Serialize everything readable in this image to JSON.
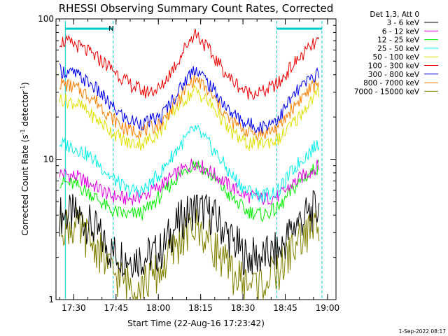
{
  "chart_data": {
    "type": "line",
    "title": "RHESSI Observing Summary Count Rates, Corrected",
    "xlabel": "Start Time (22-Aug-16 17:23:42)",
    "ylabel": "Corrected Count Rate (s",
    "ylabel_sup": "-1",
    "ylabel_mid": " detector",
    "ylabel_sup2": "-1",
    "ylabel_end": ")",
    "y_scale": "log",
    "ylim": [
      1,
      100
    ],
    "xlim": [
      "17:23:42",
      "19:03:00"
    ],
    "x_tick_labels": [
      "17:30",
      "17:45",
      "18:00",
      "18:15",
      "18:30",
      "18:45",
      "19:00"
    ],
    "y_tick_labels": [
      "1",
      "10",
      "100"
    ],
    "grid": false,
    "legend_header": "Det 1,3, Att 0",
    "legend_position": "right",
    "night_marker_label": "N",
    "series": [
      {
        "name": "3 - 6 keV",
        "color": "#000000",
        "values": [
          4,
          4,
          3.2,
          2.2,
          2,
          2,
          2.2,
          3.5,
          4.5,
          4,
          2.8,
          2,
          2,
          2.2,
          3.5,
          4.5
        ]
      },
      {
        "name": "6 - 12 keV",
        "color": "#e000e0",
        "values": [
          8,
          7.5,
          6.5,
          5.5,
          5.2,
          5.5,
          6.5,
          8,
          9.5,
          8,
          6.5,
          5.5,
          5.2,
          5.5,
          7,
          9
        ]
      },
      {
        "name": "12 - 25 keV",
        "color": "#00ee00",
        "values": [
          7,
          6.5,
          5.5,
          4.3,
          4,
          4.2,
          5.5,
          7.5,
          9.5,
          7.5,
          5.5,
          4.3,
          4,
          4.5,
          6.5,
          9
        ]
      },
      {
        "name": "25 - 50 keV",
        "color": "#00eeee",
        "values": [
          13,
          12,
          10,
          7.5,
          6,
          6,
          8,
          12,
          16.5,
          12,
          8,
          6,
          5.5,
          6,
          9,
          13
        ]
      },
      {
        "name": "50 - 100 keV",
        "color": "#e0e000",
        "values": [
          27,
          25,
          20,
          16,
          13,
          13,
          16,
          24,
          31,
          24,
          16,
          13,
          13,
          14,
          19,
          30
        ]
      },
      {
        "name": "100 - 300 keV",
        "color": "#ee0000",
        "values": [
          70,
          65,
          55,
          45,
          35,
          30,
          32,
          50,
          80,
          55,
          38,
          30,
          30,
          35,
          50,
          70
        ]
      },
      {
        "name": "300 - 800 keV",
        "color": "#0000ee",
        "values": [
          43,
          40,
          33,
          24,
          19,
          18,
          20,
          30,
          45,
          32,
          22,
          18,
          17,
          20,
          30,
          42
        ]
      },
      {
        "name": "800 - 7000 keV",
        "color": "#ff8000",
        "values": [
          35,
          32,
          27,
          20,
          16,
          16,
          18,
          26,
          38,
          28,
          19,
          16,
          15,
          17,
          25,
          36
        ]
      },
      {
        "name": "7000 - 15000 keV",
        "color": "#808000",
        "values": [
          3.5,
          3.2,
          2.5,
          1.6,
          1.3,
          1.3,
          1.6,
          2.5,
          3.3,
          2.5,
          1.6,
          1.3,
          1.3,
          1.6,
          2.5,
          3.5
        ]
      }
    ],
    "x": [
      "17:25",
      "17:31",
      "17:37",
      "17:43",
      "17:49",
      "17:55",
      "18:01",
      "18:07",
      "18:13",
      "18:19",
      "18:25",
      "18:31",
      "18:37",
      "18:43",
      "18:49",
      "18:57"
    ],
    "footer_stamp": "1-Sep-2022 08:17"
  }
}
